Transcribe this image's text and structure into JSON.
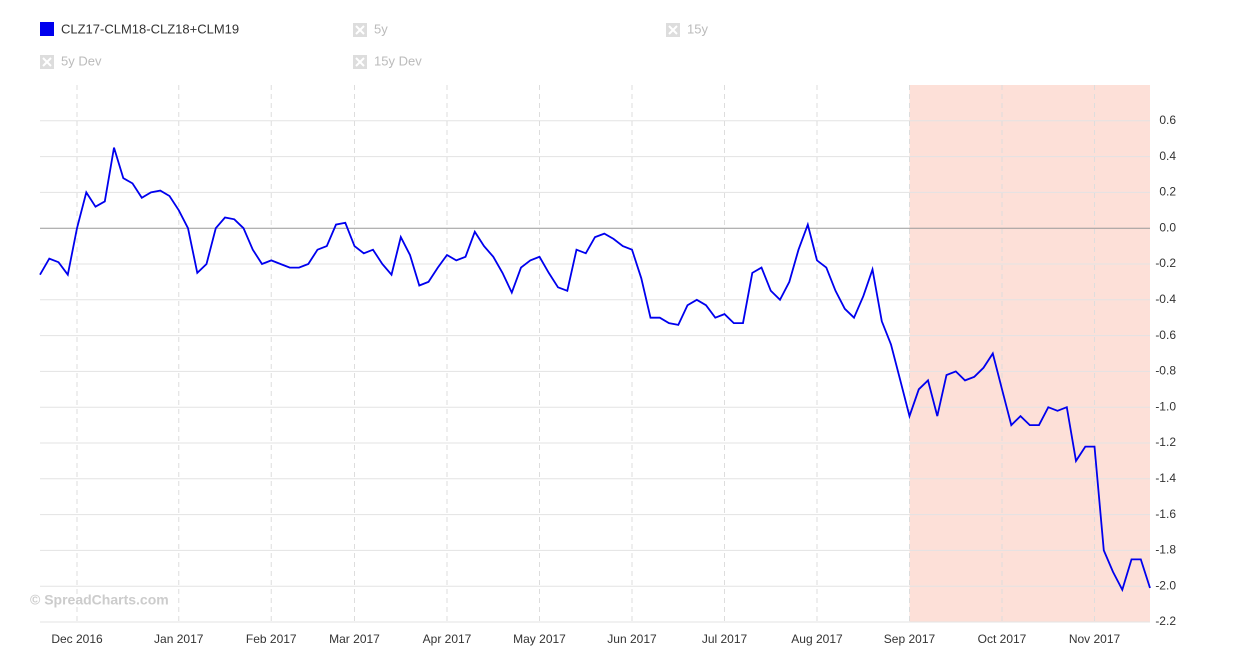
{
  "chart_data": {
    "type": "line",
    "series": [
      {
        "name": "CLZ17-CLM18-CLZ18+CLM19",
        "color": "#0000ee",
        "values": [
          -0.26,
          -0.17,
          -0.19,
          -0.26,
          0.0,
          0.2,
          0.12,
          0.15,
          0.45,
          0.28,
          0.25,
          0.17,
          0.2,
          0.21,
          0.18,
          0.1,
          0.0,
          -0.25,
          -0.2,
          0.0,
          0.06,
          0.05,
          0.0,
          -0.12,
          -0.2,
          -0.18,
          -0.2,
          -0.22,
          -0.22,
          -0.2,
          -0.12,
          -0.1,
          0.02,
          0.03,
          -0.1,
          -0.14,
          -0.12,
          -0.2,
          -0.26,
          -0.05,
          -0.15,
          -0.32,
          -0.3,
          -0.22,
          -0.15,
          -0.18,
          -0.16,
          -0.02,
          -0.1,
          -0.16,
          -0.25,
          -0.36,
          -0.22,
          -0.18,
          -0.16,
          -0.25,
          -0.33,
          -0.35,
          -0.12,
          -0.14,
          -0.05,
          -0.03,
          -0.06,
          -0.1,
          -0.12,
          -0.28,
          -0.5,
          -0.5,
          -0.53,
          -0.54,
          -0.43,
          -0.4,
          -0.43,
          -0.5,
          -0.48,
          -0.53,
          -0.53,
          -0.25,
          -0.22,
          -0.35,
          -0.4,
          -0.3,
          -0.12,
          0.02,
          -0.18,
          -0.22,
          -0.35,
          -0.45,
          -0.5,
          -0.38,
          -0.23,
          -0.52,
          -0.65,
          -0.85,
          -1.05,
          -0.9,
          -0.85,
          -1.05,
          -0.82,
          -0.8,
          -0.85,
          -0.83,
          -0.78,
          -0.7,
          -0.9,
          -1.1,
          -1.05,
          -1.1,
          -1.1,
          -1.0,
          -1.02,
          -1.0,
          -1.3,
          -1.22,
          -1.22,
          -1.8,
          -1.92,
          -2.02,
          -1.85,
          -1.85,
          -2.01
        ]
      }
    ],
    "categories": [
      null,
      null,
      null,
      null,
      "Dec 2016",
      null,
      null,
      null,
      null,
      null,
      null,
      null,
      null,
      null,
      null,
      "Jan 2017",
      null,
      null,
      null,
      null,
      null,
      null,
      null,
      null,
      null,
      "Feb 2017",
      null,
      null,
      null,
      null,
      null,
      null,
      null,
      null,
      "Mar 2017",
      null,
      null,
      null,
      null,
      null,
      null,
      null,
      null,
      null,
      "Apr 2017",
      null,
      null,
      null,
      null,
      null,
      null,
      null,
      null,
      null,
      "May 2017",
      null,
      null,
      null,
      null,
      null,
      null,
      null,
      null,
      null,
      "Jun 2017",
      null,
      null,
      null,
      null,
      null,
      null,
      null,
      null,
      null,
      "Jul 2017",
      null,
      null,
      null,
      null,
      null,
      null,
      null,
      null,
      null,
      "Aug 2017",
      null,
      null,
      null,
      null,
      null,
      null,
      null,
      null,
      null,
      "Sep 2017",
      null,
      null,
      null,
      null,
      null,
      null,
      null,
      null,
      null,
      "Oct 2017",
      null,
      null,
      null,
      null,
      null,
      null,
      null,
      null,
      null,
      "Nov 2017",
      null,
      null,
      null,
      null,
      null,
      null
    ],
    "inactive_legend": [
      "5y",
      "15y",
      "5y Dev",
      "15y Dev"
    ],
    "ylim": [
      -2.2,
      0.8
    ],
    "yticks": [
      0.6,
      0.4,
      0.2,
      {
        "value": 0,
        "label": "0.0"
      },
      -0.2,
      -0.4,
      -0.6,
      -0.8,
      {
        "value": -1,
        "label": "-1.0"
      },
      -1.2,
      -1.4,
      -1.6,
      -1.8,
      {
        "value": -2,
        "label": "-2.0"
      },
      -2.2
    ],
    "grid": true,
    "highlight_from": 94,
    "highlight_color": "#fde0d8",
    "watermark": "© SpreadCharts.com"
  }
}
